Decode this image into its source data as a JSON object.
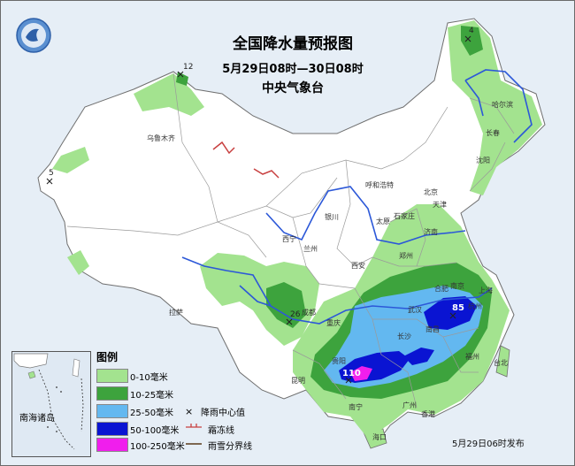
{
  "header": {
    "title": "全国降水量预报图",
    "period": "5月29日08时—30日08时",
    "issuer": "中央气象台"
  },
  "legend": {
    "title": "图例",
    "categories": [
      {
        "label": "0-10毫米",
        "color": "#a3e38f"
      },
      {
        "label": "10-25毫米",
        "color": "#3da33d"
      },
      {
        "label": "25-50毫米",
        "color": "#63b8f0"
      },
      {
        "label": "50-100毫米",
        "color": "#0a14d2"
      },
      {
        "label": "100-250毫米",
        "color": "#f01eed"
      }
    ],
    "symbols": {
      "rain_center": "降雨中心值",
      "frost_line": "霜冻线",
      "rain_snow_line": "雨雪分界线"
    }
  },
  "inset": {
    "label": "南海诸岛"
  },
  "issue_time": "5月29日06时发布",
  "rain_centers": [
    {
      "value": "12"
    },
    {
      "value": "4"
    },
    {
      "value": "5"
    },
    {
      "value": "26"
    },
    {
      "value": "85"
    },
    {
      "value": "110"
    }
  ],
  "cities": {
    "urumqi": "乌鲁木齐",
    "harbin": "哈尔滨",
    "changchun": "长春",
    "shenyang": "沈阳",
    "hohhot": "呼和浩特",
    "beijing": "北京",
    "tianjin": "天津",
    "shijiazhuang": "石家庄",
    "taiyuan": "太原",
    "jinan": "济南",
    "yinchuan": "银川",
    "xining": "西宁",
    "lanzhou": "兰州",
    "zhengzhou": "郑州",
    "xian": "西安",
    "hefei": "合肥",
    "nanjing": "南京",
    "shanghai": "上海",
    "wuhan": "武汉",
    "chengdu": "成都",
    "lhasa": "拉萨",
    "chongqing": "重庆",
    "changsha": "长沙",
    "nanchang": "南昌",
    "hangzhou": "杭州",
    "guiyang": "贵阳",
    "fuzhou": "福州",
    "taipei": "台北",
    "kunming": "昆明",
    "nanning": "南宁",
    "guangzhou": "广州",
    "hongkong": "香港",
    "haikou": "海口"
  }
}
